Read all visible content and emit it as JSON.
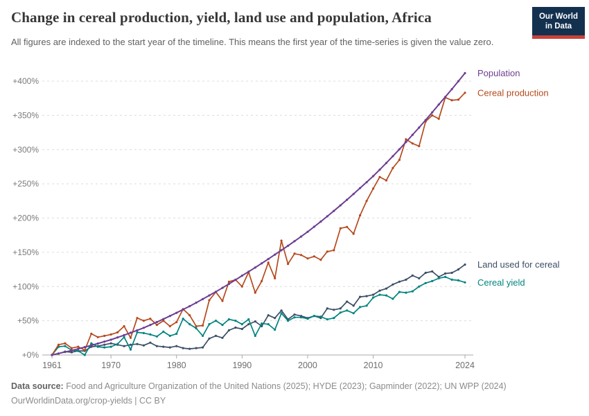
{
  "header": {
    "title": "Change in cereal production, yield, land use and population, Africa",
    "subtitle": "All figures are indexed to the start year of the timeline. This means the first year of the time-series is given the value zero.",
    "logo": {
      "line1": "Our World",
      "line2": "in Data",
      "bg_color": "#13304F",
      "stripe_color": "#C9413A"
    }
  },
  "chart_data": {
    "type": "line",
    "title": "Change in cereal production, yield, land use and population, Africa",
    "xlabel": "",
    "ylabel": "",
    "grid": "horizontal-dashed",
    "legend_position": "right-end-labels",
    "ylim": [
      0,
      400
    ],
    "ytick_values": [
      0,
      50,
      100,
      150,
      200,
      250,
      300,
      350,
      400
    ],
    "ytick_labels": [
      "+0%",
      "+50%",
      "+100%",
      "+150%",
      "+200%",
      "+250%",
      "+300%",
      "+350%",
      "+400%"
    ],
    "xticks": [
      1961,
      1970,
      1980,
      1990,
      2000,
      2010,
      2024
    ],
    "x": [
      1961,
      1962,
      1963,
      1964,
      1965,
      1966,
      1967,
      1968,
      1969,
      1970,
      1971,
      1972,
      1973,
      1974,
      1975,
      1976,
      1977,
      1978,
      1979,
      1980,
      1981,
      1982,
      1983,
      1984,
      1985,
      1986,
      1987,
      1988,
      1989,
      1990,
      1991,
      1992,
      1993,
      1994,
      1995,
      1996,
      1997,
      1998,
      1999,
      2000,
      2001,
      2002,
      2003,
      2004,
      2005,
      2006,
      2007,
      2008,
      2009,
      2010,
      2011,
      2012,
      2013,
      2014,
      2015,
      2016,
      2017,
      2018,
      2019,
      2020,
      2021,
      2022,
      2023,
      2024
    ],
    "unit": "% change since 1961",
    "series": [
      {
        "name": "Land used for cereal",
        "color": "#3C4E66",
        "values": [
          0,
          2,
          5,
          4,
          6,
          6,
          12,
          13,
          15,
          17,
          15,
          13,
          15,
          16,
          14,
          18,
          13,
          12,
          11,
          13,
          10,
          9,
          10,
          11,
          24,
          28,
          25,
          36,
          40,
          38,
          45,
          49,
          42,
          58,
          54,
          65,
          52,
          59,
          57,
          54,
          57,
          54,
          68,
          66,
          68,
          78,
          72,
          85,
          86,
          88,
          94,
          97,
          103,
          107,
          110,
          116,
          112,
          120,
          122,
          114,
          119,
          120,
          125,
          132
        ]
      },
      {
        "name": "Cereal yield",
        "color": "#00847E",
        "values": [
          0,
          12,
          13,
          7,
          6,
          0,
          17,
          12,
          11,
          12,
          16,
          26,
          8,
          33,
          32,
          30,
          27,
          34,
          28,
          31,
          53,
          45,
          39,
          28,
          45,
          50,
          44,
          52,
          50,
          45,
          52,
          28,
          46,
          45,
          37,
          61,
          50,
          55,
          55,
          53,
          57,
          56,
          52,
          54,
          62,
          65,
          61,
          70,
          72,
          84,
          88,
          87,
          82,
          92,
          91,
          93,
          100,
          105,
          108,
          112,
          114,
          110,
          109,
          106
        ]
      },
      {
        "name": "Cereal production",
        "color": "#B5491D",
        "values": [
          0,
          15,
          17,
          10,
          12,
          7,
          31,
          26,
          28,
          30,
          33,
          42,
          25,
          54,
          50,
          53,
          44,
          50,
          42,
          48,
          67,
          58,
          42,
          43,
          80,
          92,
          79,
          107,
          110,
          100,
          121,
          91,
          108,
          135,
          112,
          167,
          133,
          148,
          146,
          141,
          144,
          139,
          151,
          153,
          185,
          187,
          177,
          204,
          225,
          243,
          260,
          255,
          273,
          285,
          315,
          309,
          305,
          341,
          350,
          345,
          376,
          372,
          373,
          383
        ]
      },
      {
        "name": "Population",
        "color": "#6D3E91",
        "values": [
          0,
          2.2,
          4.4,
          6.6,
          8.9,
          11.5,
          14.1,
          16.7,
          19.5,
          22.3,
          25.6,
          29,
          32.5,
          36,
          39.7,
          43.8,
          48.1,
          52.5,
          57,
          61.6,
          66.4,
          71.3,
          76.4,
          81.6,
          87,
          92.4,
          98,
          103.8,
          109.7,
          115.8,
          121.7,
          127.7,
          133.9,
          140.2,
          146.6,
          153,
          159.5,
          166.2,
          173,
          180,
          187.3,
          194.8,
          202.5,
          210.4,
          218.5,
          226.7,
          235.1,
          243.7,
          252.4,
          261.3,
          270.7,
          280.4,
          290.3,
          300.5,
          311,
          321.5,
          332.2,
          343.1,
          354.3,
          365.8,
          376.9,
          388.3,
          399.9,
          411.6
        ]
      }
    ],
    "style": {
      "gridline_color": "#dcdcdc",
      "axis_color": "#a8a8a8",
      "ytick_label_color": "#7a7a7a",
      "xtick_label_color": "#6e6e6e"
    }
  },
  "footer": {
    "source_label": "Data source:",
    "source_text": " Food and Agriculture Organization of the United Nations (2025); HYDE (2023); Gapminder (2022); UN WPP (2024)",
    "link_text": "OurWorldinData.org/crop-yields | CC BY"
  }
}
